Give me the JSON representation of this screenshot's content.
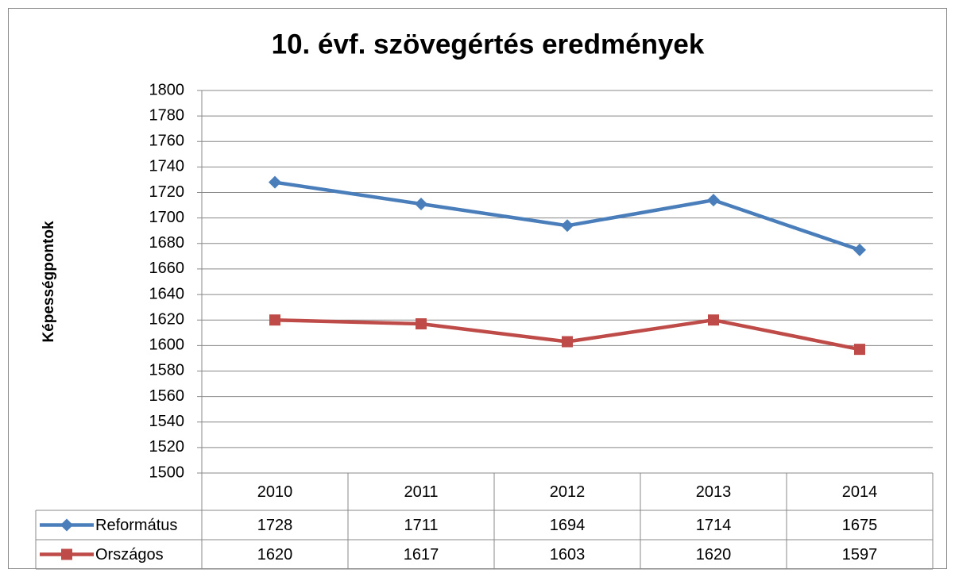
{
  "chart_data": {
    "type": "line",
    "title": "10. évf. szövegértés eredmények",
    "y_label": "Képességpontok",
    "categories": [
      "2010",
      "2011",
      "2012",
      "2013",
      "2014"
    ],
    "series": [
      {
        "name": "Református",
        "color": "#4a7ebb",
        "marker": "diamond",
        "values": [
          1728,
          1711,
          1694,
          1714,
          1675
        ]
      },
      {
        "name": "Országos",
        "color": "#be4b48",
        "marker": "square",
        "values": [
          1620,
          1617,
          1603,
          1620,
          1597
        ]
      }
    ],
    "ylim": [
      1500,
      1800
    ],
    "yticks": [
      1500,
      1520,
      1540,
      1560,
      1580,
      1600,
      1620,
      1640,
      1660,
      1680,
      1700,
      1720,
      1740,
      1760,
      1780,
      1800
    ],
    "grid": true,
    "data_table": true
  }
}
